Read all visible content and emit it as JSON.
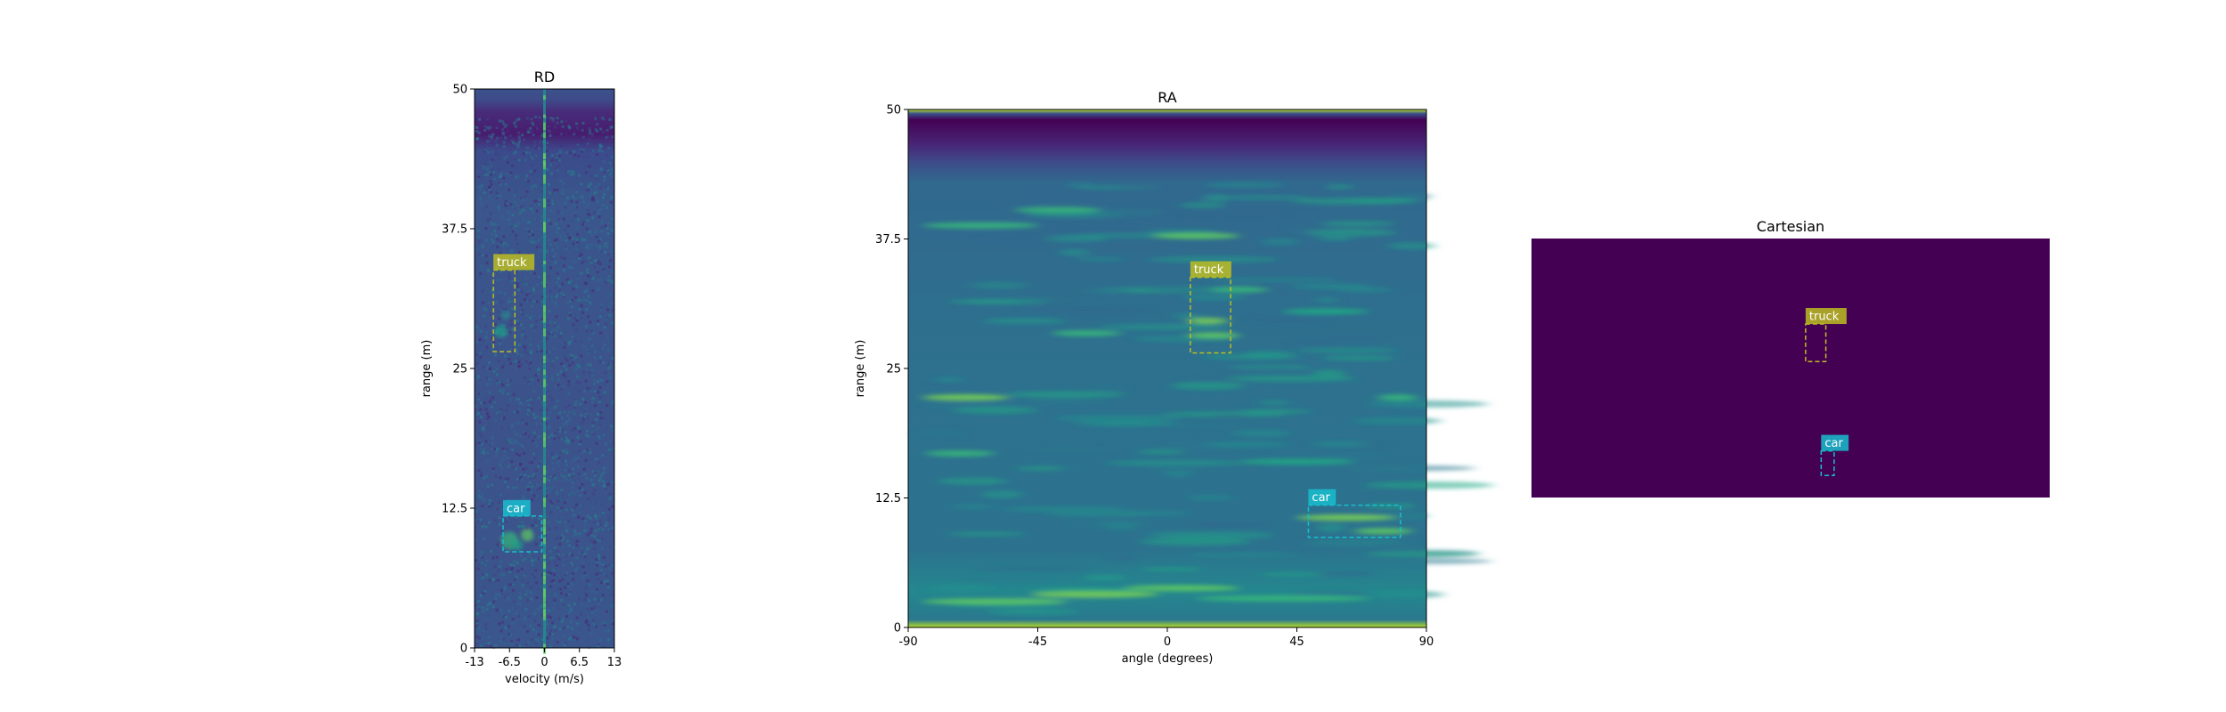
{
  "chart_data": [
    {
      "type": "heatmap",
      "title": "RD",
      "xlabel": "velocity (m/s)",
      "ylabel": "range (m)",
      "xlim": [
        -13,
        13
      ],
      "ylim": [
        0,
        50
      ],
      "xticks": [
        -13,
        -6.5,
        0,
        6.5,
        13
      ],
      "xtick_labels": [
        "-13",
        "-6.5",
        "0",
        "6.5",
        "13"
      ],
      "yticks": [
        0,
        12.5,
        25,
        37.5,
        50
      ],
      "ytick_labels": [
        "0",
        "12.5",
        "25",
        "37.5",
        "50"
      ],
      "colormap": "viridis",
      "boxes": [
        {
          "label": "truck",
          "color": "#bcbd22",
          "x0": -9.5,
          "x1": -5.5,
          "y0": 26.5,
          "y1": 33.8
        },
        {
          "label": "car",
          "color": "#17becf",
          "x0": -7.7,
          "x1": -0.5,
          "y0": 8.6,
          "y1": 11.8
        }
      ]
    },
    {
      "type": "heatmap",
      "title": "RA",
      "xlabel": "angle (degrees)",
      "ylabel": "range (m)",
      "xlim": [
        -90,
        90
      ],
      "ylim": [
        0,
        50
      ],
      "xticks": [
        -90,
        -45,
        0,
        45,
        90
      ],
      "xtick_labels": [
        "-90",
        "-45",
        "0",
        "45",
        "90"
      ],
      "yticks": [
        0,
        12.5,
        25,
        37.5,
        50
      ],
      "ytick_labels": [
        "0",
        "12.5",
        "25",
        "37.5",
        "50"
      ],
      "colormap": "viridis",
      "boxes": [
        {
          "label": "truck",
          "color": "#bcbd22",
          "x0": 8,
          "x1": 22,
          "y0": 26.5,
          "y1": 33.8
        },
        {
          "label": "car",
          "color": "#17becf",
          "x0": 49,
          "x1": 81,
          "y0": 8.7,
          "y1": 11.8
        }
      ]
    },
    {
      "type": "heatmap",
      "title": "Cartesian",
      "xlabel": "",
      "ylabel": "",
      "background_color": "#440154",
      "boxes": [
        {
          "label": "truck",
          "color": "#bcbd22",
          "x0": 0.529,
          "x1": 0.568,
          "y0": 0.33,
          "y1": 0.475
        },
        {
          "label": "car",
          "color": "#17becf",
          "x0": 0.559,
          "x1": 0.584,
          "y0": 0.82,
          "y1": 0.915
        }
      ]
    }
  ]
}
